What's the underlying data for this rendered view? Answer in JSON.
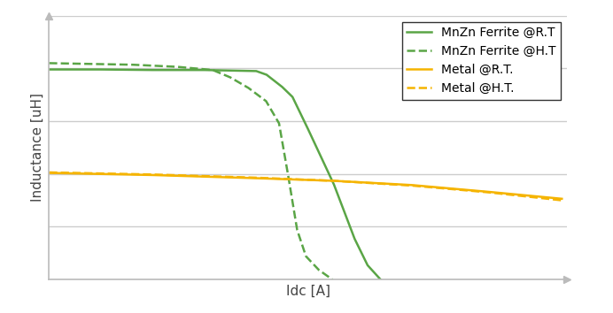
{
  "chart_data": {
    "type": "line",
    "x_label": "Idc [A]",
    "y_label": "Inductance [uH]",
    "xlim": [
      0,
      10
    ],
    "xticks": [
      0,
      2,
      4,
      6,
      8,
      10
    ],
    "ylim": [
      0,
      5
    ],
    "yticks": [
      0,
      1,
      2,
      3,
      4,
      5
    ],
    "grid": true,
    "legend": "upper right",
    "tick_labels": false,
    "series": [
      {
        "name": "MnZn Ferrite @R.T",
        "color": "#5aa546",
        "line_style": "solid",
        "x": [
          0,
          1,
          2,
          3,
          3.5,
          4.0,
          4.2,
          4.5,
          4.7,
          5.0,
          5.5,
          5.9,
          6.15,
          6.4
        ],
        "values": [
          3.98,
          3.98,
          3.97,
          3.97,
          3.96,
          3.95,
          3.88,
          3.65,
          3.46,
          2.85,
          1.8,
          0.77,
          0.27,
          0.0
        ]
      },
      {
        "name": "MnZn Ferrite @H.T",
        "color": "#5aa546",
        "line_style": "dashed",
        "x": [
          0,
          1.62,
          2.48,
          3.16,
          3.5,
          3.85,
          4.19,
          4.44,
          4.62,
          4.79,
          4.96,
          5.21,
          5.47
        ],
        "values": [
          4.1,
          4.07,
          4.03,
          3.97,
          3.83,
          3.63,
          3.38,
          2.96,
          1.95,
          0.94,
          0.44,
          0.18,
          0.0
        ]
      },
      {
        "name": "Metal @R.T.",
        "color": "#f5b400",
        "line_style": "solid",
        "x": [
          0,
          2,
          4,
          5.5,
          7,
          8.5,
          9.9
        ],
        "values": [
          2.02,
          1.98,
          1.92,
          1.87,
          1.79,
          1.66,
          1.53
        ]
      },
      {
        "name": "Metal @H.T.",
        "color": "#f5b400",
        "line_style": "dashed",
        "x": [
          0,
          2,
          4,
          5.5,
          7,
          8.5,
          9.9
        ],
        "values": [
          2.03,
          1.99,
          1.93,
          1.87,
          1.78,
          1.65,
          1.5
        ]
      }
    ]
  }
}
